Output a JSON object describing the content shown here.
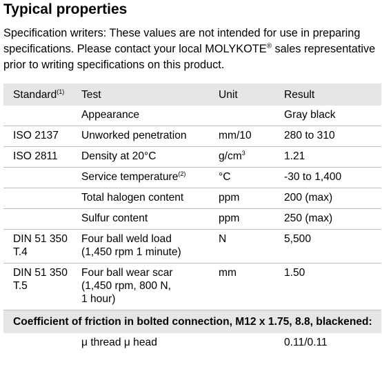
{
  "title": "Typical properties",
  "intro": {
    "text": "Specification writers: These values are not intended for use in preparing specifications. Please contact your local MOLYKOTE",
    "reg": "®",
    "text2": " sales representative prior to writing specifications on this product."
  },
  "table": {
    "headers": {
      "standard": "Standard",
      "standard_note": "(1)",
      "test": "Test",
      "unit": "Unit",
      "result": "Result"
    },
    "rows": [
      {
        "standard": "",
        "test": "Appearance",
        "test_note": "",
        "unit": "",
        "result": "Gray black"
      },
      {
        "standard": "ISO 2137",
        "test": "Unworked penetration",
        "test_note": "",
        "unit": "mm/10",
        "result": "280 to 310"
      },
      {
        "standard": "ISO 2811",
        "test": "Density at 20°C",
        "test_note": "",
        "unit": "g/cm",
        "unit_sup": "3",
        "result": "1.21"
      },
      {
        "standard": "",
        "test": "Service temperature",
        "test_note": "(2)",
        "unit": "°C",
        "result": "-30 to 1,400"
      },
      {
        "standard": "",
        "test": "Total halogen content",
        "test_note": "",
        "unit": "ppm",
        "result": "200 (max)"
      },
      {
        "standard": "",
        "test": "Sulfur content",
        "test_note": "",
        "unit": "ppm",
        "result": "250 (max)"
      },
      {
        "standard_l1": "DIN 51 350",
        "standard_l2": "T.4",
        "test_l1": "Four ball weld load",
        "test_l2": "(1,450 rpm 1 minute)",
        "unit": "N",
        "result": "5,500"
      },
      {
        "standard_l1": "DIN 51 350",
        "standard_l2": "T.5",
        "test_l1": "Four ball wear scar",
        "test_l2": "(1,450 rpm, 800 N,",
        "test_l3": "1 hour)",
        "unit": "mm",
        "result": "1.50"
      }
    ],
    "section": "Coefficient of friction in bolted connection, M12 x 1.75, 8.8, blackened:",
    "section_row": {
      "standard": "",
      "test": "μ thread μ head",
      "unit": "",
      "result": "0.11/0.11"
    }
  }
}
